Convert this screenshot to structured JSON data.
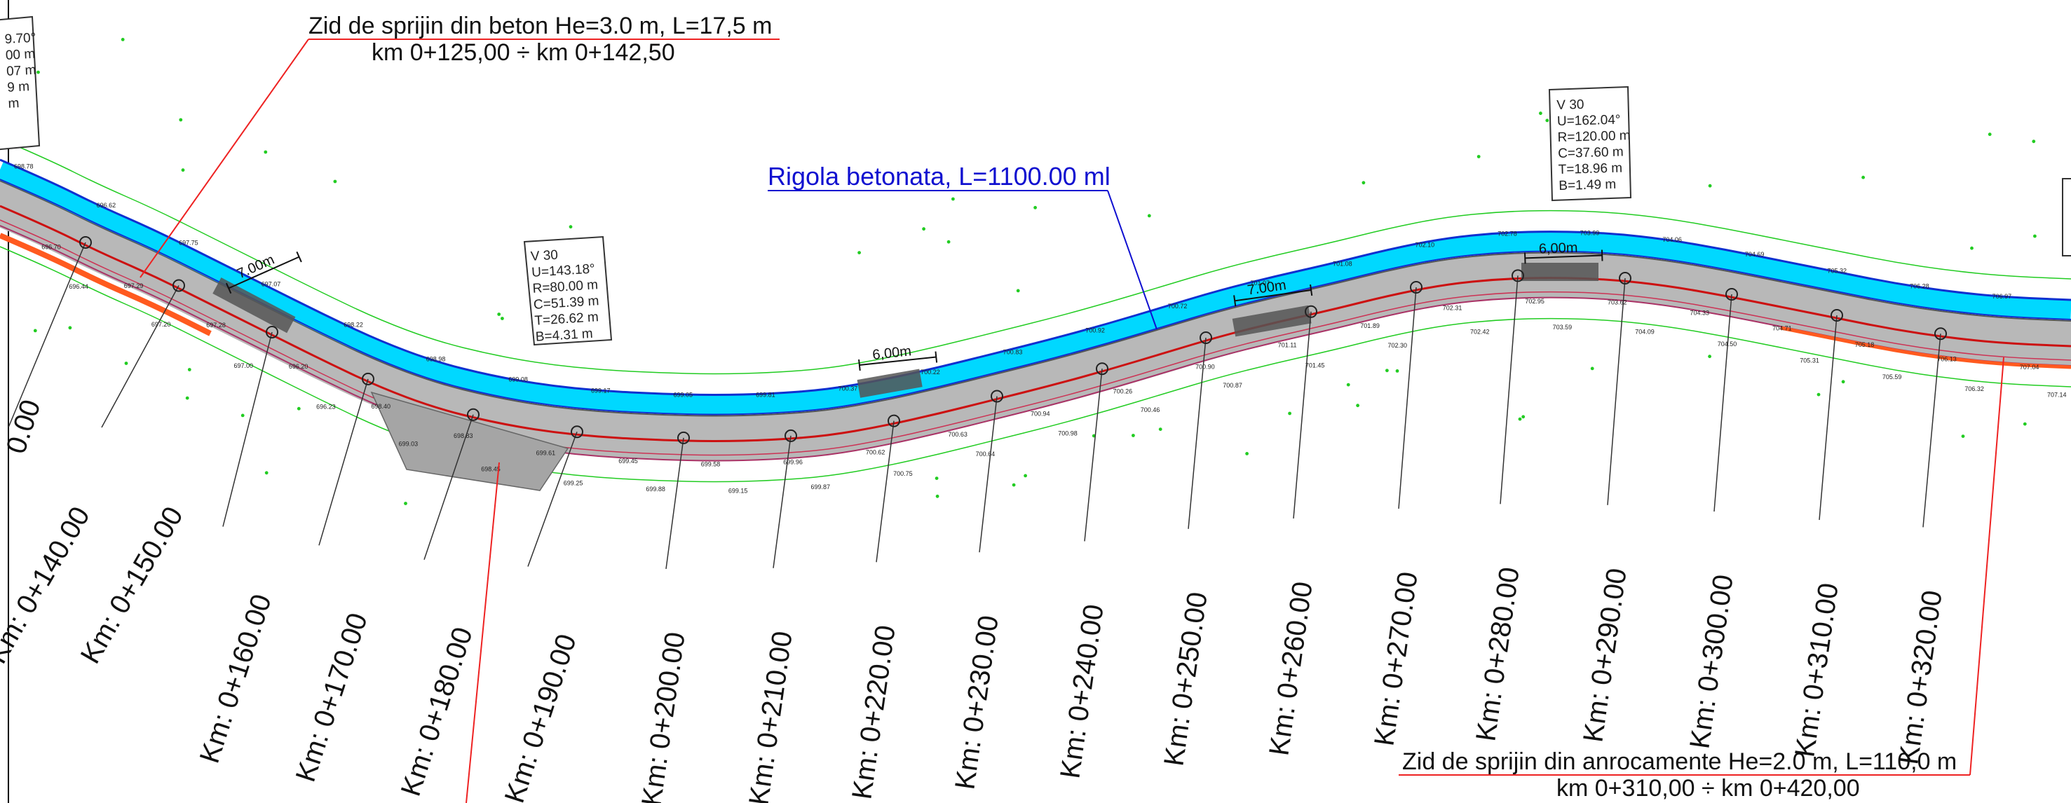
{
  "annotations": {
    "wall_top": {
      "line1": "Zid de sprijin din beton He=3.0 m, L=17,5 m",
      "line2": "km 0+125,00 ÷ km 0+142,50"
    },
    "rigola": "Rigola betonata,  L=1100.00 ml",
    "wall_bottom": {
      "line1": "Zid de sprijin din anrocamente He=2.0 m, L=110,0 m",
      "line2": "km 0+310,00 ÷ km 0+420,00"
    }
  },
  "curve_boxes": [
    {
      "lines": [
        "V 30",
        "U=143.18°",
        "R=80.00 m",
        "C=51.39 m",
        "T=26.62 m",
        "B=4.31 m"
      ]
    },
    {
      "lines": [
        "V 30",
        "U=162.04°",
        "R=120.00 m",
        "C=37.60 m",
        "T=18.96 m",
        "B=1.49 m"
      ]
    },
    {
      "lines": [
        "9.70°",
        "00 m",
        "07 m",
        "9 m",
        "m"
      ]
    }
  ],
  "widths": [
    "7.00m",
    "6,00m",
    "7.00m",
    "6,00m"
  ],
  "stations": [
    "0.00",
    "Km: 0+140.00",
    "Km: 0+150.00",
    "Km: 0+160.00",
    "Km: 0+170.00",
    "Km: 0+180.00",
    "Km: 0+190.00",
    "Km: 0+200.00",
    "Km: 0+210.00",
    "Km: 0+220.00",
    "Km: 0+230.00",
    "Km: 0+240.00",
    "Km: 0+250.00",
    "Km: 0+260.00",
    "Km: 0+270.00",
    "Km: 0+280.00",
    "Km: 0+290.00",
    "Km: 0+300.00",
    "Km: 0+310.00",
    "Km: 0+320.00"
  ],
  "elevations": [
    "698.78",
    "696.70",
    "696.44",
    "696.62",
    "697.29",
    "697.20",
    "697.75",
    "697.28",
    "697.00",
    "697.07",
    "696.20",
    "696.23",
    "698.22",
    "698.40",
    "699.03",
    "698.98",
    "698.83",
    "698.45",
    "699.08",
    "699.61",
    "699.25",
    "699.17",
    "699.45",
    "699.88",
    "699.05",
    "699.58",
    "699.15",
    "699.81",
    "699.96",
    "699.87",
    "700.37",
    "700.62",
    "700.75",
    "700.22",
    "700.63",
    "700.64",
    "700.83",
    "700.94",
    "700.98",
    "700.92",
    "700.26",
    "700.46",
    "700.72",
    "700.90",
    "700.87",
    "701.07",
    "701.11",
    "701.45",
    "701.08",
    "701.89",
    "702.30",
    "702.10",
    "702.31",
    "702.42",
    "702.78",
    "702.95",
    "703.59",
    "703.99",
    "703.62",
    "704.09",
    "704.06",
    "704.33",
    "704.50",
    "704.69",
    "704.71",
    "705.31",
    "705.32",
    "705.18",
    "705.59",
    "706.28",
    "706.13",
    "706.32",
    "706.97",
    "707.04",
    "707.14"
  ],
  "colors": {
    "road": "#b8b8b8",
    "rigola": "#00d8ff",
    "axis": "#cc1111",
    "leader": "#333333",
    "annotation_leader": "#ee2222",
    "green_line": "#22cc22",
    "wall": "#ff5a1f"
  }
}
